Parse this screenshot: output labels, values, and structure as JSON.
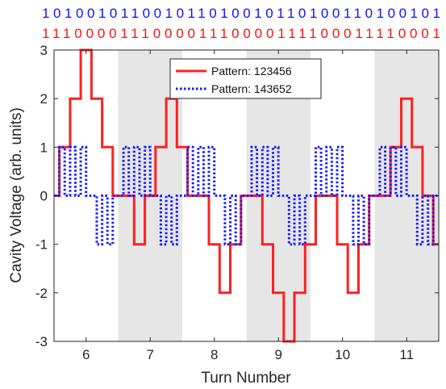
{
  "chart_data": {
    "type": "line",
    "xlabel": "Turn Number",
    "ylabel": "Cavity Voltage (arb. units)",
    "xlim": [
      5.5,
      11.5
    ],
    "ylim": [
      -3,
      3
    ],
    "xticks": [
      6,
      7,
      8,
      9,
      10,
      11
    ],
    "yticks": [
      3,
      2,
      1,
      0,
      -1,
      -2,
      -3
    ],
    "grid": false,
    "legend_position": "top-center",
    "step_duration_turns": 0.0833,
    "shaded_turns": [
      7,
      9,
      11
    ],
    "bit_rows": [
      {
        "text": "10100101100101101001011010011010010 1",
        "color": "#1010ff"
      },
      {
        "text": "11100001110000111000011110001111000 1",
        "color": "#ff1010"
      }
    ],
    "series": [
      {
        "name": "Pattern: 123456",
        "color": "#ff2020",
        "style": "solid",
        "x_start": 5.5,
        "values": [
          0,
          1,
          1,
          2,
          2,
          3,
          3,
          2,
          2,
          1,
          1,
          0,
          0,
          0,
          0,
          -1,
          -1,
          0,
          0,
          1,
          1,
          2,
          2,
          1,
          1,
          0,
          0,
          0,
          0,
          -1,
          -1,
          -2,
          -2,
          -1,
          -1,
          0,
          0,
          0,
          0,
          -1,
          -1,
          -2,
          -2,
          -3,
          -3,
          -2,
          -2,
          -1,
          -1,
          0,
          0,
          0,
          0,
          -1,
          -1,
          -2,
          -2,
          -1,
          -1,
          0,
          0,
          0,
          0,
          1,
          1,
          2,
          2,
          1,
          1,
          0,
          0,
          -1
        ]
      },
      {
        "name": "Pattern: 143652",
        "color": "#1a1aff",
        "style": "dotted",
        "x_start": 5.5,
        "values": [
          0,
          1,
          0,
          1,
          0,
          1,
          0,
          0,
          -1,
          0,
          -1,
          0,
          0,
          1,
          0,
          1,
          0,
          1,
          0,
          0,
          -1,
          0,
          -1,
          0,
          0,
          1,
          0,
          1,
          0,
          1,
          0,
          0,
          -1,
          0,
          -1,
          0,
          0,
          1,
          0,
          1,
          0,
          1,
          0,
          0,
          -1,
          0,
          -1,
          0,
          0,
          1,
          0,
          1,
          0,
          1,
          0,
          0,
          -1,
          0,
          -1,
          0,
          0,
          1,
          0,
          1,
          0,
          1,
          0,
          0,
          -1,
          0,
          -1,
          0
        ]
      }
    ]
  }
}
